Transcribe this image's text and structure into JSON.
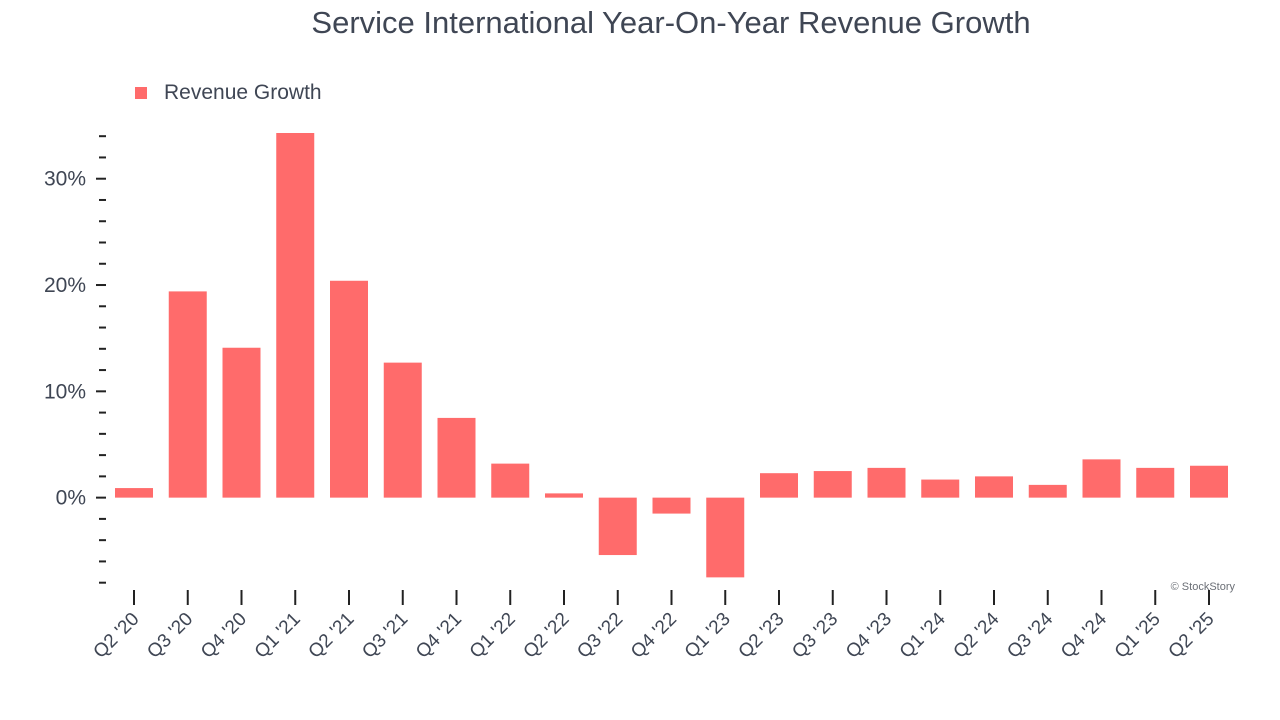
{
  "chart_data": {
    "type": "bar",
    "title": "Service International Year-On-Year Revenue Growth",
    "xlabel": "",
    "ylabel": "",
    "legend": {
      "label": "Revenue Growth",
      "position": "top-left"
    },
    "credit": "© StockStory",
    "categories": [
      "Q2 '20",
      "Q3 '20",
      "Q4 '20",
      "Q1 '21",
      "Q2 '21",
      "Q3 '21",
      "Q4 '21",
      "Q1 '22",
      "Q2 '22",
      "Q3 '22",
      "Q4 '22",
      "Q1 '23",
      "Q2 '23",
      "Q3 '23",
      "Q4 '23",
      "Q1 '24",
      "Q2 '24",
      "Q3 '24",
      "Q4 '24",
      "Q1 '25",
      "Q2 '25"
    ],
    "series": [
      {
        "name": "Revenue Growth",
        "color": "#ff6b6b",
        "values": [
          0.9,
          19.4,
          14.1,
          34.3,
          20.4,
          12.7,
          7.5,
          3.2,
          0.4,
          -5.4,
          -1.5,
          -7.5,
          2.3,
          2.5,
          2.8,
          1.7,
          2.0,
          1.2,
          3.6,
          2.8,
          3.0
        ]
      }
    ],
    "ylim": [
      -8.5,
      34.3
    ],
    "yticks": [
      {
        "value": 0,
        "label": "0%"
      },
      {
        "value": 10,
        "label": "10%"
      },
      {
        "value": 20,
        "label": "20%"
      },
      {
        "value": 30,
        "label": "30%"
      }
    ],
    "minor_tick_step": 2,
    "grid": false
  },
  "colors": {
    "text": "#3f4654",
    "axis": "#222222",
    "bar": "#ff6b6b"
  }
}
